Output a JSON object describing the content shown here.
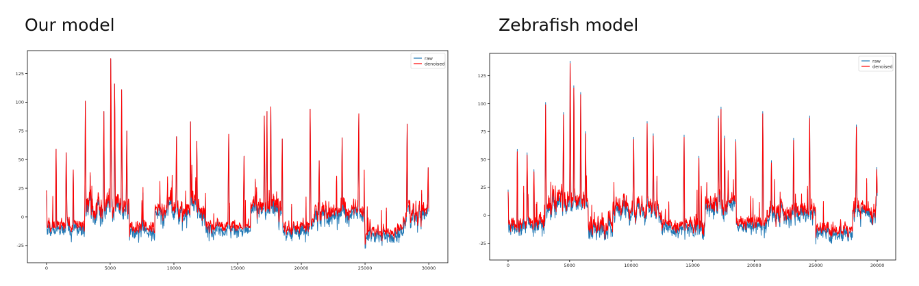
{
  "panels": {
    "left": {
      "title": "Our model"
    },
    "right": {
      "title": "Zebrafish model"
    }
  },
  "colors": {
    "raw": "#1f77b4",
    "denoised": "#ff0000"
  },
  "chart_data": [
    {
      "type": "line",
      "title": "Our model",
      "xlabel": "",
      "ylabel": "",
      "xlim": [
        -1500,
        31500
      ],
      "ylim": [
        -40,
        145
      ],
      "xticks": [
        0,
        5000,
        10000,
        15000,
        20000,
        25000,
        30000
      ],
      "yticks": [
        -25,
        0,
        25,
        50,
        75,
        100,
        125
      ],
      "legend": "top-right",
      "grid": false,
      "series": [
        {
          "name": "raw",
          "color": "#1f77b4"
        },
        {
          "name": "denoised",
          "color": "#ff0000"
        }
      ],
      "n_points": 30000,
      "segments": [
        {
          "x0": 0,
          "x1": 3000,
          "mean": -6,
          "noise": 7
        },
        {
          "x0": 3000,
          "x1": 6500,
          "mean": 12,
          "noise": 11
        },
        {
          "x0": 6500,
          "x1": 8500,
          "mean": -8,
          "noise": 8
        },
        {
          "x0": 8500,
          "x1": 12500,
          "mean": 8,
          "noise": 10
        },
        {
          "x0": 12500,
          "x1": 16000,
          "mean": -8,
          "noise": 7
        },
        {
          "x0": 16000,
          "x1": 18500,
          "mean": 10,
          "noise": 10
        },
        {
          "x0": 18500,
          "x1": 21000,
          "mean": -8,
          "noise": 7
        },
        {
          "x0": 21000,
          "x1": 25000,
          "mean": 5,
          "noise": 9
        },
        {
          "x0": 25000,
          "x1": 28000,
          "mean": -12,
          "noise": 6
        },
        {
          "x0": 28000,
          "x1": 30000,
          "mean": 5,
          "noise": 10
        }
      ],
      "peaks": [
        {
          "x": 0,
          "y": 23
        },
        {
          "x": 750,
          "y": 59
        },
        {
          "x": 1550,
          "y": 56
        },
        {
          "x": 2100,
          "y": 41
        },
        {
          "x": 3050,
          "y": 101
        },
        {
          "x": 4500,
          "y": 92
        },
        {
          "x": 5050,
          "y": 138
        },
        {
          "x": 5350,
          "y": 116
        },
        {
          "x": 5900,
          "y": 111
        },
        {
          "x": 6300,
          "y": 75
        },
        {
          "x": 10200,
          "y": 70
        },
        {
          "x": 11300,
          "y": 83
        },
        {
          "x": 11800,
          "y": 66
        },
        {
          "x": 14300,
          "y": 72
        },
        {
          "x": 15500,
          "y": 53
        },
        {
          "x": 17100,
          "y": 88
        },
        {
          "x": 17300,
          "y": 92
        },
        {
          "x": 17600,
          "y": 96
        },
        {
          "x": 18500,
          "y": 68
        },
        {
          "x": 20700,
          "y": 94
        },
        {
          "x": 21400,
          "y": 49
        },
        {
          "x": 23200,
          "y": 69
        },
        {
          "x": 24500,
          "y": 90
        },
        {
          "x": 28300,
          "y": 81
        },
        {
          "x": 29950,
          "y": 43
        }
      ]
    },
    {
      "type": "line",
      "title": "Zebrafish model",
      "xlabel": "",
      "ylabel": "",
      "xlim": [
        -1500,
        31500
      ],
      "ylim": [
        -40,
        145
      ],
      "xticks": [
        0,
        5000,
        10000,
        15000,
        20000,
        25000,
        30000
      ],
      "yticks": [
        -25,
        0,
        25,
        50,
        75,
        100,
        125
      ],
      "legend": "top-right",
      "grid": false,
      "series": [
        {
          "name": "raw",
          "color": "#1f77b4"
        },
        {
          "name": "denoised",
          "color": "#ff0000"
        }
      ],
      "n_points": 30000,
      "segments": [
        {
          "x0": 0,
          "x1": 3000,
          "mean": -6,
          "noise": 7
        },
        {
          "x0": 3000,
          "x1": 6500,
          "mean": 12,
          "noise": 11
        },
        {
          "x0": 6500,
          "x1": 8500,
          "mean": -8,
          "noise": 8
        },
        {
          "x0": 8500,
          "x1": 12500,
          "mean": 8,
          "noise": 10
        },
        {
          "x0": 12500,
          "x1": 16000,
          "mean": -8,
          "noise": 7
        },
        {
          "x0": 16000,
          "x1": 18500,
          "mean": 10,
          "noise": 10
        },
        {
          "x0": 18500,
          "x1": 21000,
          "mean": -8,
          "noise": 7
        },
        {
          "x0": 21000,
          "x1": 25000,
          "mean": 5,
          "noise": 9
        },
        {
          "x0": 25000,
          "x1": 28000,
          "mean": -12,
          "noise": 6
        },
        {
          "x0": 28000,
          "x1": 30000,
          "mean": 5,
          "noise": 10
        }
      ],
      "peaks": [
        {
          "x": 0,
          "y": 23
        },
        {
          "x": 750,
          "y": 59
        },
        {
          "x": 1550,
          "y": 56
        },
        {
          "x": 2100,
          "y": 41
        },
        {
          "x": 3050,
          "y": 101
        },
        {
          "x": 4500,
          "y": 92
        },
        {
          "x": 5050,
          "y": 138
        },
        {
          "x": 5350,
          "y": 116
        },
        {
          "x": 5900,
          "y": 110
        },
        {
          "x": 6300,
          "y": 75
        },
        {
          "x": 10200,
          "y": 70
        },
        {
          "x": 11300,
          "y": 84
        },
        {
          "x": 11800,
          "y": 73
        },
        {
          "x": 14300,
          "y": 72
        },
        {
          "x": 15500,
          "y": 53
        },
        {
          "x": 17100,
          "y": 89
        },
        {
          "x": 17300,
          "y": 97
        },
        {
          "x": 17600,
          "y": 71
        },
        {
          "x": 18500,
          "y": 68
        },
        {
          "x": 20700,
          "y": 93
        },
        {
          "x": 21400,
          "y": 49
        },
        {
          "x": 23200,
          "y": 69
        },
        {
          "x": 24500,
          "y": 89
        },
        {
          "x": 28300,
          "y": 81
        },
        {
          "x": 29950,
          "y": 43
        }
      ]
    }
  ]
}
